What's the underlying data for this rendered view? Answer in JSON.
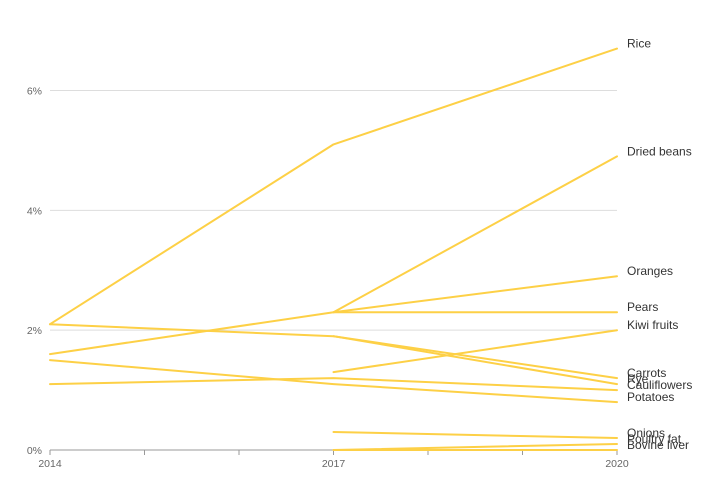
{
  "chart_data": {
    "type": "line",
    "title": "",
    "xlabel": "",
    "ylabel": "",
    "x_ticks": [
      "2014",
      "2017",
      "2020"
    ],
    "y_ticks": [
      "0%",
      "2%",
      "4%",
      "6%"
    ],
    "ylim": [
      0,
      7
    ],
    "xlim": [
      2014,
      2020
    ],
    "grid": true,
    "line_color": "#fdd046",
    "series": [
      {
        "name": "Rice",
        "points": [
          [
            2014,
            2.1
          ],
          [
            2017,
            5.1
          ],
          [
            2020,
            6.7
          ]
        ]
      },
      {
        "name": "Dried beans",
        "points": [
          [
            2017,
            2.3
          ],
          [
            2020,
            4.9
          ]
        ]
      },
      {
        "name": "Oranges",
        "points": [
          [
            2014,
            1.6
          ],
          [
            2017,
            2.3
          ],
          [
            2020,
            2.9
          ]
        ]
      },
      {
        "name": "Pears",
        "points": [
          [
            2017,
            2.3
          ],
          [
            2020,
            2.3
          ]
        ]
      },
      {
        "name": "Kiwi fruits",
        "points": [
          [
            2017,
            1.3
          ],
          [
            2020,
            2.0
          ]
        ]
      },
      {
        "name": "Carrots",
        "points": [
          [
            2014,
            2.1
          ],
          [
            2017,
            1.9
          ],
          [
            2020,
            1.2
          ]
        ]
      },
      {
        "name": "Rye",
        "points": [
          [
            2017,
            1.9
          ],
          [
            2020,
            1.1
          ]
        ]
      },
      {
        "name": "Cauliflowers",
        "points": [
          [
            2014,
            1.1
          ],
          [
            2017,
            1.2
          ],
          [
            2020,
            1.0
          ]
        ]
      },
      {
        "name": "Potatoes",
        "points": [
          [
            2014,
            1.5
          ],
          [
            2017,
            1.1
          ],
          [
            2020,
            0.8
          ]
        ]
      },
      {
        "name": "Onions",
        "points": [
          [
            2017,
            0.3
          ],
          [
            2020,
            0.2
          ]
        ]
      },
      {
        "name": "Poultry fat",
        "points": [
          [
            2017,
            0.0
          ],
          [
            2020,
            0.1
          ]
        ]
      },
      {
        "name": "Bovine liver",
        "points": [
          [
            2017,
            0.0
          ],
          [
            2020,
            0.0
          ]
        ]
      }
    ]
  }
}
